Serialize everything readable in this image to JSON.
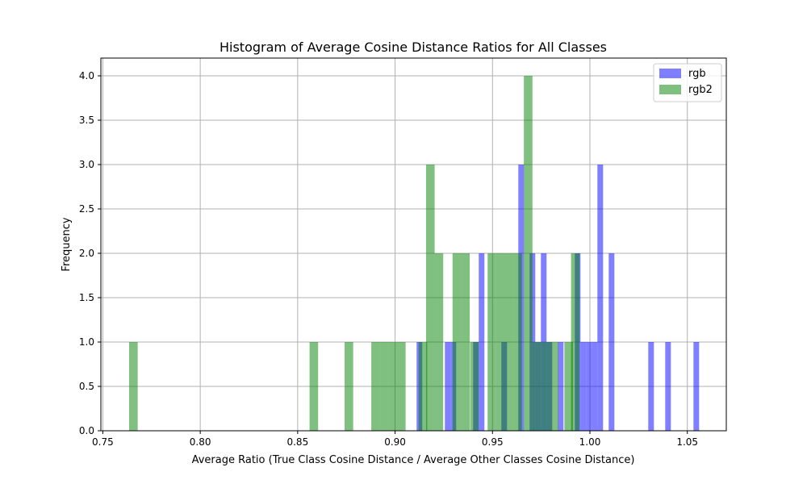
{
  "chart_data": {
    "type": "bar",
    "title": "Histogram of Average Cosine Distance Ratios for All Classes",
    "xlabel": "Average Ratio (True Class Cosine Distance / Average Other Classes Cosine Distance)",
    "ylabel": "Frequency",
    "xlim": [
      0.749,
      1.07
    ],
    "ylim": [
      0,
      4.2
    ],
    "xticks": [
      "0.75",
      "0.80",
      "0.85",
      "0.90",
      "0.95",
      "1.00",
      "1.05"
    ],
    "yticks": [
      "0.0",
      "0.5",
      "1.0",
      "1.5",
      "2.0",
      "2.5",
      "3.0",
      "3.5",
      "4.0"
    ],
    "grid": true,
    "legend_position": "top-right",
    "series": [
      {
        "name": "rgb",
        "color": "#0000ff",
        "opacity": 0.5,
        "bin_width": 0.0029,
        "bins": [
          {
            "x": 0.9125,
            "y": 1
          },
          {
            "x": 0.927,
            "y": 1
          },
          {
            "x": 0.9299,
            "y": 1
          },
          {
            "x": 0.9415,
            "y": 1
          },
          {
            "x": 0.9444,
            "y": 2
          },
          {
            "x": 0.956,
            "y": 1
          },
          {
            "x": 0.9647,
            "y": 3
          },
          {
            "x": 0.9705,
            "y": 2
          },
          {
            "x": 0.9734,
            "y": 1
          },
          {
            "x": 0.9763,
            "y": 2
          },
          {
            "x": 0.9792,
            "y": 1
          },
          {
            "x": 0.985,
            "y": 1
          },
          {
            "x": 0.9937,
            "y": 2
          },
          {
            "x": 0.9966,
            "y": 1
          },
          {
            "x": 0.9995,
            "y": 1
          },
          {
            "x": 1.0024,
            "y": 1
          },
          {
            "x": 1.0053,
            "y": 3
          },
          {
            "x": 1.0111,
            "y": 2
          },
          {
            "x": 1.0314,
            "y": 1
          },
          {
            "x": 1.0401,
            "y": 1
          },
          {
            "x": 1.0546,
            "y": 1
          }
        ]
      },
      {
        "name": "rgb2",
        "color": "#008000",
        "opacity": 0.5,
        "bin_width": 0.0044,
        "bins": [
          {
            "x": 0.7657,
            "y": 1
          },
          {
            "x": 0.8583,
            "y": 1
          },
          {
            "x": 0.8763,
            "y": 1
          },
          {
            "x": 0.89,
            "y": 1
          },
          {
            "x": 0.8944,
            "y": 1
          },
          {
            "x": 0.8988,
            "y": 1
          },
          {
            "x": 0.9032,
            "y": 1
          },
          {
            "x": 0.9143,
            "y": 1
          },
          {
            "x": 0.9181,
            "y": 3
          },
          {
            "x": 0.9225,
            "y": 2
          },
          {
            "x": 0.9317,
            "y": 2
          },
          {
            "x": 0.9361,
            "y": 2
          },
          {
            "x": 0.9407,
            "y": 1
          },
          {
            "x": 0.9497,
            "y": 2
          },
          {
            "x": 0.9541,
            "y": 2
          },
          {
            "x": 0.9585,
            "y": 2
          },
          {
            "x": 0.9629,
            "y": 2
          },
          {
            "x": 0.9683,
            "y": 4
          },
          {
            "x": 0.9727,
            "y": 1
          },
          {
            "x": 0.9771,
            "y": 1
          },
          {
            "x": 0.9815,
            "y": 1
          },
          {
            "x": 0.9891,
            "y": 1
          },
          {
            "x": 0.9925,
            "y": 2
          }
        ]
      }
    ]
  }
}
